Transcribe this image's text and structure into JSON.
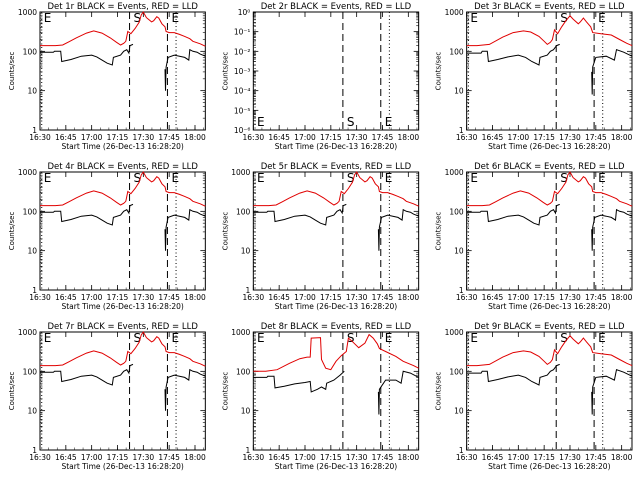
{
  "chart_data": [
    {
      "type": "line",
      "title": "Det 1r BLACK = Events, RED = LLD",
      "ylabel": "Counts/sec",
      "xlabel": "Start Time (26-Dec-13 16:28:20)",
      "x_ticks": [
        "16:30",
        "16:45",
        "17:00",
        "17:15",
        "17:30",
        "17:45",
        "18:00"
      ],
      "y_ticks": [
        "1",
        "10",
        "100",
        "1000"
      ],
      "yscale": "log",
      "ylim": [
        1,
        1000
      ],
      "markers": [
        {
          "label": "E",
          "time": "16:31",
          "style": "dotted"
        },
        {
          "label": "S",
          "time": "17:22",
          "style": "dashed"
        },
        {
          "label": "E",
          "time": "17:44",
          "style": "dashed"
        },
        {
          "label": "",
          "time": "17:49",
          "style": "dotted"
        }
      ],
      "series": [
        {
          "color": "#e00000"
        },
        {
          "color": "#000000"
        }
      ],
      "profile": "A"
    },
    {
      "type": "line",
      "title": "Det 2r BLACK = Events, RED = LLD",
      "ylabel": "Counts/sec",
      "xlabel": "Start Time (26-Dec-13 16:28:20)",
      "x_ticks": [
        "16:30",
        "16:45",
        "17:00",
        "17:15",
        "17:30",
        "17:45",
        "18:00"
      ],
      "y_ticks": [
        "10⁻⁶",
        "10⁻⁵",
        "10⁻⁴",
        "10⁻³",
        "10⁻²",
        "10⁻¹",
        "10⁰"
      ],
      "yscale": "log",
      "markers": [
        {
          "label": "E",
          "time": "16:31",
          "style": "dotted"
        },
        {
          "label": "S",
          "time": "17:22",
          "style": "dashed"
        },
        {
          "label": "E",
          "time": "17:44",
          "style": "dashed"
        },
        {
          "label": "",
          "time": "17:49",
          "style": "dotted"
        }
      ],
      "series": [],
      "profile": "none"
    },
    {
      "type": "line",
      "title": "Det 3r BLACK = Events, RED = LLD",
      "ylabel": "Counts/sec",
      "xlabel": "Start Time (26-Dec-13 16:28:20)",
      "x_ticks": [
        "16:30",
        "16:45",
        "17:00",
        "17:15",
        "17:30",
        "17:45",
        "18:00"
      ],
      "y_ticks": [
        "1",
        "10",
        "100",
        "1000"
      ],
      "yscale": "log",
      "ylim": [
        1,
        1000
      ],
      "markers": [
        {
          "label": "E",
          "time": "16:31",
          "style": "dotted"
        },
        {
          "label": "S",
          "time": "17:22",
          "style": "dashed"
        },
        {
          "label": "E",
          "time": "17:44",
          "style": "dashed"
        },
        {
          "label": "",
          "time": "17:49",
          "style": "dotted"
        }
      ],
      "series": [
        {
          "color": "#e00000"
        },
        {
          "color": "#000000"
        }
      ],
      "profile": "B"
    },
    {
      "type": "line",
      "title": "Det 4r BLACK = Events, RED = LLD",
      "ylabel": "Counts/sec",
      "xlabel": "Start Time (26-Dec-13 16:28:20)",
      "x_ticks": [
        "16:30",
        "16:45",
        "17:00",
        "17:15",
        "17:30",
        "17:45",
        "18:00"
      ],
      "y_ticks": [
        "1",
        "10",
        "100",
        "1000"
      ],
      "yscale": "log",
      "ylim": [
        1,
        1000
      ],
      "markers": [
        {
          "label": "E",
          "time": "16:31",
          "style": "dotted"
        },
        {
          "label": "S",
          "time": "17:22",
          "style": "dashed"
        },
        {
          "label": "E",
          "time": "17:44",
          "style": "dashed"
        },
        {
          "label": "",
          "time": "17:49",
          "style": "dotted"
        }
      ],
      "series": [
        {
          "color": "#e00000"
        },
        {
          "color": "#000000"
        }
      ],
      "profile": "A"
    },
    {
      "type": "line",
      "title": "Det 5r BLACK = Events, RED = LLD",
      "ylabel": "Counts/sec",
      "xlabel": "Start Time (26-Dec-13 16:28:20)",
      "x_ticks": [
        "16:30",
        "16:45",
        "17:00",
        "17:15",
        "17:30",
        "17:45",
        "18:00"
      ],
      "y_ticks": [
        "1",
        "10",
        "100",
        "1000"
      ],
      "yscale": "log",
      "ylim": [
        1,
        1000
      ],
      "markers": [
        {
          "label": "E",
          "time": "16:31",
          "style": "dotted"
        },
        {
          "label": "S",
          "time": "17:22",
          "style": "dashed"
        },
        {
          "label": "E",
          "time": "17:44",
          "style": "dashed"
        },
        {
          "label": "",
          "time": "17:49",
          "style": "dotted"
        }
      ],
      "series": [
        {
          "color": "#e00000"
        },
        {
          "color": "#000000"
        }
      ],
      "profile": "A"
    },
    {
      "type": "line",
      "title": "Det 6r BLACK = Events, RED = LLD",
      "ylabel": "Counts/sec",
      "xlabel": "Start Time (26-Dec-13 16:28:20)",
      "x_ticks": [
        "16:30",
        "16:45",
        "17:00",
        "17:15",
        "17:30",
        "17:45",
        "18:00"
      ],
      "y_ticks": [
        "1",
        "10",
        "100",
        "1000"
      ],
      "yscale": "log",
      "ylim": [
        1,
        1000
      ],
      "markers": [
        {
          "label": "E",
          "time": "16:31",
          "style": "dotted"
        },
        {
          "label": "S",
          "time": "17:22",
          "style": "dashed"
        },
        {
          "label": "E",
          "time": "17:44",
          "style": "dashed"
        },
        {
          "label": "",
          "time": "17:49",
          "style": "dotted"
        }
      ],
      "series": [
        {
          "color": "#e00000"
        },
        {
          "color": "#000000"
        }
      ],
      "profile": "A"
    },
    {
      "type": "line",
      "title": "Det 7r BLACK = Events, RED = LLD",
      "ylabel": "Counts/sec",
      "xlabel": "Start Time (26-Dec-13 16:28:20)",
      "x_ticks": [
        "16:30",
        "16:45",
        "17:00",
        "17:15",
        "17:30",
        "17:45",
        "18:00"
      ],
      "y_ticks": [
        "1",
        "10",
        "100",
        "1000"
      ],
      "yscale": "log",
      "ylim": [
        1,
        1000
      ],
      "markers": [
        {
          "label": "E",
          "time": "16:31",
          "style": "dotted"
        },
        {
          "label": "S",
          "time": "17:22",
          "style": "dashed"
        },
        {
          "label": "E",
          "time": "17:44",
          "style": "dashed"
        },
        {
          "label": "",
          "time": "17:49",
          "style": "dotted"
        }
      ],
      "series": [
        {
          "color": "#e00000"
        },
        {
          "color": "#000000"
        }
      ],
      "profile": "A"
    },
    {
      "type": "line",
      "title": "Det 8r BLACK = Events, RED = LLD",
      "ylabel": "Counts/sec",
      "xlabel": "Start Time (26-Dec-13 16:28:20)",
      "x_ticks": [
        "16:30",
        "16:45",
        "17:00",
        "17:15",
        "17:30",
        "17:45",
        "18:00"
      ],
      "y_ticks": [
        "1",
        "10",
        "100",
        "1000"
      ],
      "yscale": "log",
      "ylim": [
        1,
        1000
      ],
      "markers": [
        {
          "label": "E",
          "time": "16:31",
          "style": "dotted"
        },
        {
          "label": "S",
          "time": "17:22",
          "style": "dashed"
        },
        {
          "label": "E",
          "time": "17:44",
          "style": "dashed"
        },
        {
          "label": "",
          "time": "17:49",
          "style": "dotted"
        }
      ],
      "series": [
        {
          "color": "#e00000"
        },
        {
          "color": "#000000"
        }
      ],
      "profile": "C"
    },
    {
      "type": "line",
      "title": "Det 9r BLACK = Events, RED = LLD",
      "ylabel": "Counts/sec",
      "xlabel": "Start Time (26-Dec-13 16:28:20)",
      "x_ticks": [
        "16:30",
        "16:45",
        "17:00",
        "17:15",
        "17:30",
        "17:45",
        "18:00"
      ],
      "y_ticks": [
        "1",
        "10",
        "100",
        "1000"
      ],
      "yscale": "log",
      "ylim": [
        1,
        1000
      ],
      "markers": [
        {
          "label": "E",
          "time": "16:31",
          "style": "dotted"
        },
        {
          "label": "S",
          "time": "17:22",
          "style": "dashed"
        },
        {
          "label": "E",
          "time": "17:44",
          "style": "dashed"
        },
        {
          "label": "",
          "time": "17:49",
          "style": "dotted"
        }
      ],
      "series": [
        {
          "color": "#e00000"
        },
        {
          "color": "#000000"
        }
      ],
      "profile": "B"
    }
  ],
  "profiles": {
    "A": {
      "red": [
        [
          16.5,
          140
        ],
        [
          16.65,
          140
        ],
        [
          16.72,
          145
        ],
        [
          16.78,
          175
        ],
        [
          16.85,
          220
        ],
        [
          16.95,
          290
        ],
        [
          17.02,
          330
        ],
        [
          17.1,
          290
        ],
        [
          17.18,
          220
        ],
        [
          17.24,
          170
        ],
        [
          17.28,
          145
        ],
        [
          17.31,
          160
        ],
        [
          17.33,
          180
        ],
        [
          17.35,
          320
        ],
        [
          17.38,
          280
        ],
        [
          17.42,
          380
        ],
        [
          17.46,
          550
        ],
        [
          17.48,
          850
        ],
        [
          17.5,
          1000
        ],
        [
          17.53,
          720
        ],
        [
          17.58,
          560
        ],
        [
          17.6,
          600
        ],
        [
          17.63,
          760
        ],
        [
          17.65,
          700
        ],
        [
          17.68,
          500
        ],
        [
          17.71,
          420
        ],
        [
          17.72,
          320
        ],
        [
          17.75,
          300
        ],
        [
          17.8,
          300
        ],
        [
          17.85,
          270
        ],
        [
          17.9,
          240
        ],
        [
          17.95,
          210
        ],
        [
          17.98,
          180
        ],
        [
          18.05,
          155
        ],
        [
          18.1,
          135
        ]
      ],
      "black": [
        [
          16.5,
          95
        ],
        [
          16.63,
          95
        ],
        [
          16.64,
          100
        ],
        [
          16.7,
          100
        ],
        [
          16.71,
          55
        ],
        [
          16.8,
          62
        ],
        [
          16.9,
          75
        ],
        [
          17.0,
          80
        ],
        [
          17.05,
          72
        ],
        [
          17.1,
          60
        ],
        [
          17.15,
          50
        ],
        [
          17.2,
          45
        ],
        [
          17.21,
          70
        ],
        [
          17.28,
          80
        ],
        [
          17.31,
          100
        ],
        [
          17.34,
          110
        ],
        [
          17.36,
          90
        ],
        [
          17.37,
          140
        ],
        [
          17.4,
          150
        ],
        [
          17.41,
          null
        ],
        [
          17.7,
          null
        ],
        [
          17.71,
          35
        ],
        [
          17.715,
          10
        ],
        [
          17.72,
          40
        ],
        [
          17.74,
          70
        ],
        [
          17.8,
          80
        ],
        [
          17.85,
          75
        ],
        [
          17.9,
          70
        ],
        [
          17.94,
          60
        ],
        [
          17.95,
          110
        ],
        [
          17.98,
          100
        ],
        [
          18.02,
          95
        ],
        [
          18.05,
          85
        ],
        [
          18.1,
          75
        ]
      ]
    },
    "B": {
      "red": [
        [
          16.5,
          140
        ],
        [
          16.6,
          140
        ],
        [
          16.72,
          150
        ],
        [
          16.85,
          230
        ],
        [
          16.95,
          300
        ],
        [
          17.05,
          330
        ],
        [
          17.12,
          310
        ],
        [
          17.2,
          240
        ],
        [
          17.25,
          180
        ],
        [
          17.28,
          150
        ],
        [
          17.31,
          170
        ],
        [
          17.33,
          200
        ],
        [
          17.35,
          350
        ],
        [
          17.38,
          280
        ],
        [
          17.42,
          420
        ],
        [
          17.46,
          600
        ],
        [
          17.5,
          800
        ],
        [
          17.53,
          660
        ],
        [
          17.58,
          500
        ],
        [
          17.6,
          560
        ],
        [
          17.63,
          700
        ],
        [
          17.66,
          560
        ],
        [
          17.7,
          420
        ],
        [
          17.72,
          300
        ],
        [
          17.8,
          280
        ],
        [
          17.9,
          260
        ],
        [
          17.98,
          200
        ],
        [
          18.05,
          160
        ],
        [
          18.1,
          140
        ]
      ],
      "black": [
        [
          16.5,
          90
        ],
        [
          16.64,
          90
        ],
        [
          16.65,
          100
        ],
        [
          16.7,
          100
        ],
        [
          16.71,
          55
        ],
        [
          16.8,
          62
        ],
        [
          16.9,
          72
        ],
        [
          17.0,
          80
        ],
        [
          17.07,
          70
        ],
        [
          17.13,
          55
        ],
        [
          17.2,
          45
        ],
        [
          17.21,
          70
        ],
        [
          17.28,
          80
        ],
        [
          17.31,
          100
        ],
        [
          17.34,
          110
        ],
        [
          17.37,
          140
        ],
        [
          17.4,
          150
        ],
        [
          17.41,
          null
        ],
        [
          17.7,
          null
        ],
        [
          17.71,
          30
        ],
        [
          17.715,
          8
        ],
        [
          17.72,
          40
        ],
        [
          17.75,
          70
        ],
        [
          17.85,
          75
        ],
        [
          17.93,
          60
        ],
        [
          17.95,
          110
        ],
        [
          18.02,
          95
        ],
        [
          18.1,
          75
        ]
      ]
    },
    "C": {
      "red": [
        [
          16.5,
          100
        ],
        [
          16.62,
          100
        ],
        [
          16.73,
          110
        ],
        [
          16.85,
          160
        ],
        [
          16.95,
          210
        ],
        [
          17.02,
          230
        ],
        [
          17.05,
          230
        ],
        [
          17.06,
          700
        ],
        [
          17.15,
          720
        ],
        [
          17.16,
          200
        ],
        [
          17.2,
          120
        ],
        [
          17.25,
          110
        ],
        [
          17.3,
          180
        ],
        [
          17.35,
          250
        ],
        [
          17.4,
          320
        ],
        [
          17.42,
          700
        ],
        [
          17.45,
          600
        ],
        [
          17.52,
          400
        ],
        [
          17.58,
          520
        ],
        [
          17.62,
          860
        ],
        [
          17.66,
          700
        ],
        [
          17.7,
          500
        ],
        [
          17.72,
          380
        ],
        [
          17.78,
          320
        ],
        [
          17.88,
          240
        ],
        [
          17.95,
          180
        ],
        [
          18.05,
          140
        ],
        [
          18.1,
          120
        ]
      ],
      "black": [
        [
          16.5,
          70
        ],
        [
          16.63,
          70
        ],
        [
          16.64,
          75
        ],
        [
          16.7,
          75
        ],
        [
          16.71,
          38
        ],
        [
          16.8,
          42
        ],
        [
          16.9,
          48
        ],
        [
          17.0,
          52
        ],
        [
          17.05,
          55
        ],
        [
          17.06,
          30
        ],
        [
          17.12,
          35
        ],
        [
          17.16,
          40
        ],
        [
          17.2,
          35
        ],
        [
          17.21,
          50
        ],
        [
          17.28,
          60
        ],
        [
          17.34,
          80
        ],
        [
          17.38,
          100
        ],
        [
          17.41,
          null
        ],
        [
          17.7,
          null
        ],
        [
          17.71,
          30
        ],
        [
          17.715,
          8
        ],
        [
          17.72,
          35
        ],
        [
          17.78,
          60
        ],
        [
          17.88,
          60
        ],
        [
          17.93,
          50
        ],
        [
          17.95,
          100
        ],
        [
          18.02,
          90
        ],
        [
          18.1,
          70
        ]
      ]
    }
  }
}
